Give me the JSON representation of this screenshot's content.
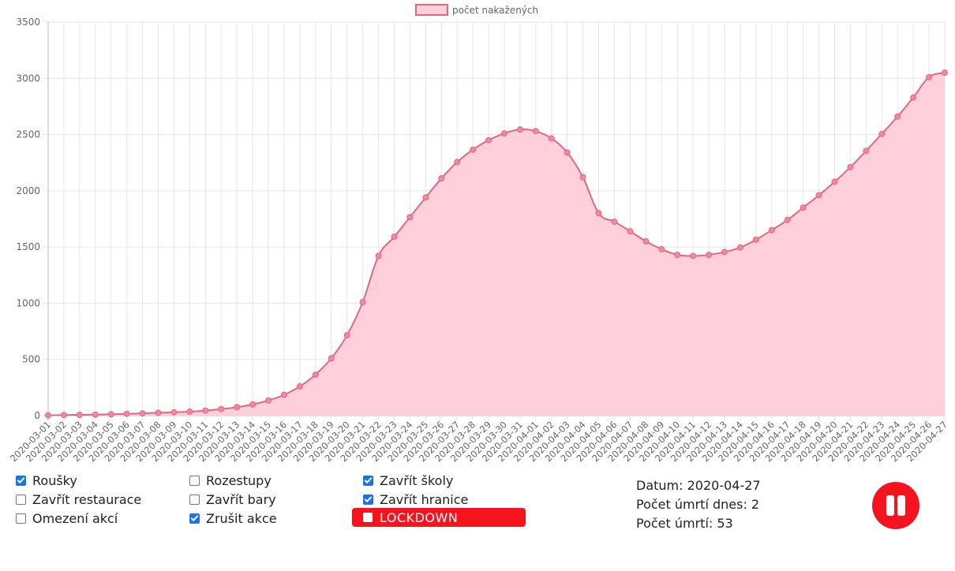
{
  "chart_data": {
    "type": "area",
    "legend": [
      "počet nakažených"
    ],
    "legend_position": "top-center",
    "grid": true,
    "ylim": [
      0,
      3500
    ],
    "yticks": [
      0,
      500,
      1000,
      1500,
      2000,
      2500,
      3000,
      3500
    ],
    "series": [
      {
        "name": "počet nakažených",
        "color": "#e5677f",
        "fill": "#ffd0db",
        "values": [
          3,
          5,
          7,
          9,
          12,
          16,
          20,
          25,
          30,
          35,
          45,
          58,
          75,
          100,
          135,
          185,
          260,
          365,
          510,
          715,
          1010,
          1420,
          1590,
          1765,
          1940,
          2110,
          2255,
          2365,
          2450,
          2510,
          2545,
          2530,
          2465,
          2340,
          2120,
          1800,
          1725,
          1640,
          1550,
          1480,
          1430,
          1420,
          1430,
          1455,
          1495,
          1565,
          1650,
          1740,
          1850,
          1960,
          2080,
          2210,
          2355,
          2505,
          2660,
          2830,
          3010,
          3050
        ]
      }
    ],
    "categories": [
      "2020-03-01",
      "2020-03-02",
      "2020-03-03",
      "2020-03-04",
      "2020-03-05",
      "2020-03-06",
      "2020-03-07",
      "2020-03-08",
      "2020-03-09",
      "2020-03-10",
      "2020-03-11",
      "2020-03-12",
      "2020-03-13",
      "2020-03-14",
      "2020-03-15",
      "2020-03-16",
      "2020-03-17",
      "2020-03-18",
      "2020-03-19",
      "2020-03-20",
      "2020-03-21",
      "2020-03-22",
      "2020-03-23",
      "2020-03-24",
      "2020-03-25",
      "2020-03-26",
      "2020-03-27",
      "2020-03-28",
      "2020-03-29",
      "2020-03-30",
      "2020-03-31",
      "2020-04-01",
      "2020-04-02",
      "2020-04-03",
      "2020-04-04",
      "2020-04-05",
      "2020-04-06",
      "2020-04-07",
      "2020-04-08",
      "2020-04-09",
      "2020-04-10",
      "2020-04-11",
      "2020-04-12",
      "2020-04-13",
      "2020-04-14",
      "2020-04-15",
      "2020-04-16",
      "2020-04-17",
      "2020-04-18",
      "2020-04-19",
      "2020-04-20",
      "2020-04-21",
      "2020-04-22",
      "2020-04-23",
      "2020-04-24",
      "2020-04-25",
      "2020-04-26",
      "2020-04-27"
    ]
  },
  "controls": {
    "checkboxes": [
      {
        "label": "Roušky",
        "checked": true
      },
      {
        "label": "Zavřít restaurace",
        "checked": false
      },
      {
        "label": "Omezení akcí",
        "checked": false
      },
      {
        "label": "Rozestupy",
        "checked": false
      },
      {
        "label": "Zavřít bary",
        "checked": false
      },
      {
        "label": "Zrušit akce",
        "checked": true
      },
      {
        "label": "Zavřít školy",
        "checked": true
      },
      {
        "label": "Zavřít hranice",
        "checked": true
      }
    ],
    "lockdown": {
      "label": "LOCKDOWN",
      "checked": false
    }
  },
  "info": {
    "datum": "Datum: 2020-04-27",
    "umrti_dnes": "Počet úmrtí dnes: 2",
    "umrti": "Počet úmrtí: 53"
  },
  "colors": {
    "accent_red": "#f5141d",
    "checkbox_blue": "#1a73e8"
  },
  "icons": {
    "pause": "pause-icon"
  }
}
